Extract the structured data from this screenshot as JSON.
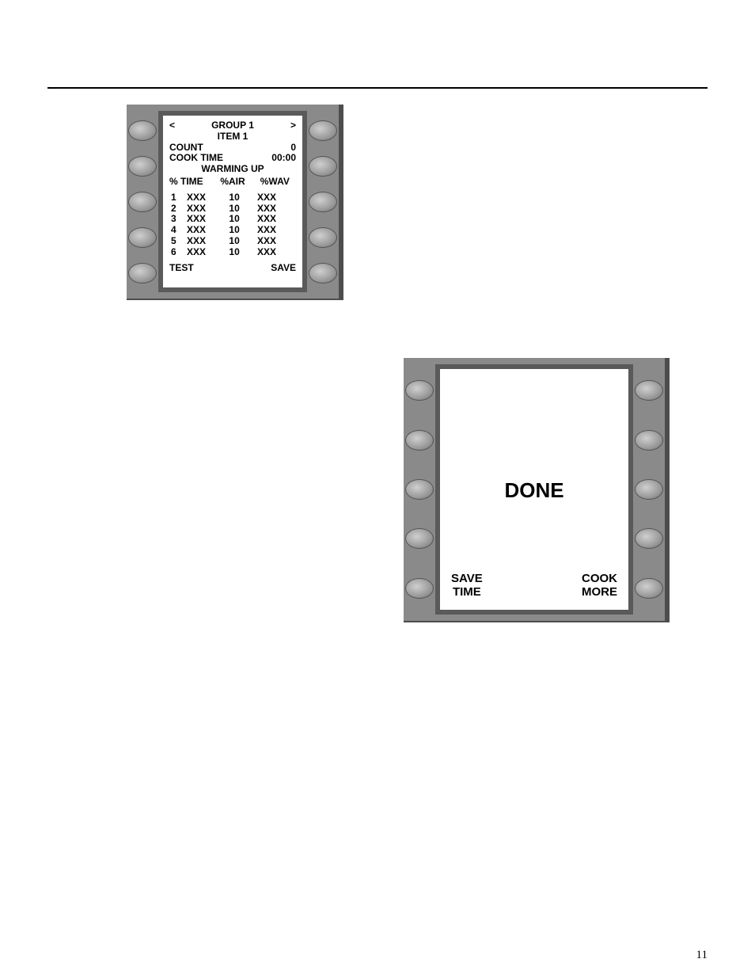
{
  "page_number": "11",
  "left_panel": {
    "buttons_per_side": 5,
    "screen": {
      "header": {
        "prev_arrow": "<",
        "title": "GROUP 1",
        "next_arrow": ">",
        "subtitle": "ITEM 1"
      },
      "count_row": {
        "label": "COUNT",
        "value": "0"
      },
      "cook_row": {
        "label": "COOK TIME",
        "value": "00:00"
      },
      "status": "WARMING UP",
      "col_heads": {
        "c1": "% TIME",
        "c2": "%AIR",
        "c3": "%WAV"
      },
      "events": [
        {
          "n": "1",
          "time": "XXX",
          "air": "10",
          "wav": "XXX"
        },
        {
          "n": "2",
          "time": "XXX",
          "air": "10",
          "wav": "XXX"
        },
        {
          "n": "3",
          "time": "XXX",
          "air": "10",
          "wav": "XXX"
        },
        {
          "n": "4",
          "time": "XXX",
          "air": "10",
          "wav": "XXX"
        },
        {
          "n": "5",
          "time": "XXX",
          "air": "10",
          "wav": "XXX"
        },
        {
          "n": "6",
          "time": "XXX",
          "air": "10",
          "wav": "XXX"
        }
      ],
      "bottom": {
        "left": "TEST",
        "right": "SAVE"
      }
    }
  },
  "right_panel": {
    "buttons_per_side": 5,
    "screen": {
      "done": "DONE",
      "bottom_left_l1": "SAVE",
      "bottom_left_l2": "TIME",
      "bottom_right_l1": "COOK",
      "bottom_right_l2": "MORE"
    }
  }
}
